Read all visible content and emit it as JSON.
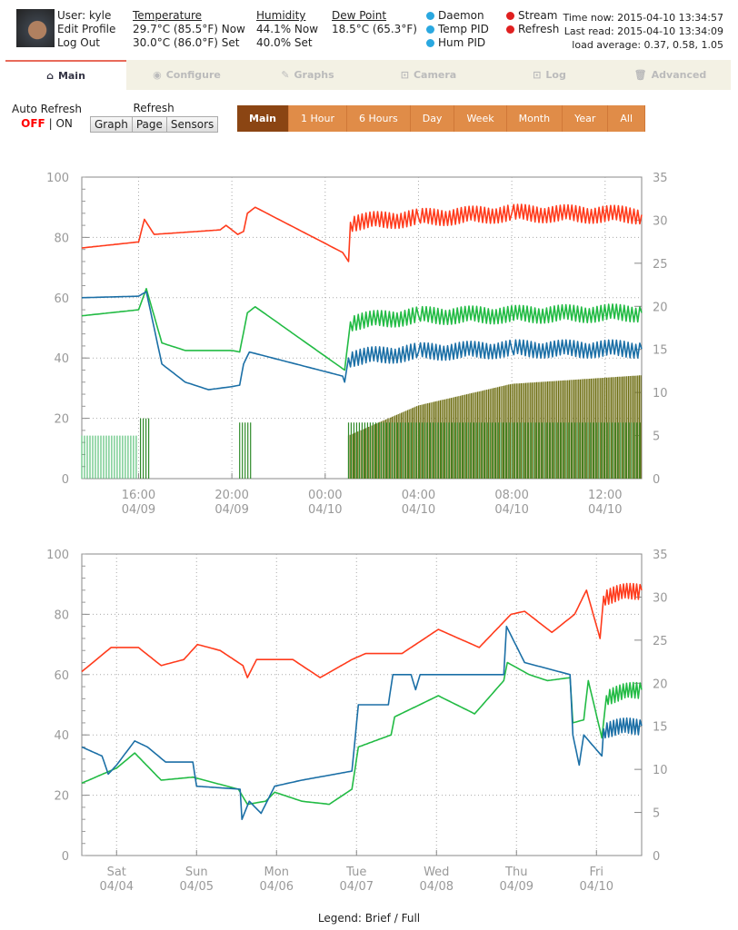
{
  "user": {
    "label": "User: kyle",
    "edit_profile": "Edit Profile",
    "log_out": "Log Out"
  },
  "temperature": {
    "title": "Temperature",
    "now": "29.7°C (85.5°F) Now",
    "set": "30.0°C (86.0°F) Set"
  },
  "humidity": {
    "title": "Humidity",
    "now": "44.1% Now",
    "set": "40.0% Set"
  },
  "dew_point": {
    "title": "Dew Point",
    "value": "18.5°C (65.3°F)"
  },
  "status": [
    {
      "label": "Daemon",
      "color": "#2aa8e0"
    },
    {
      "label": "Temp PID",
      "color": "#2aa8e0"
    },
    {
      "label": "Hum PID",
      "color": "#2aa8e0"
    },
    {
      "label": "Stream",
      "color": "#e02020"
    },
    {
      "label": "Refresh",
      "color": "#e02020"
    }
  ],
  "times": {
    "now": "Time now: 2015-04-10 13:34:57",
    "last_read": "Last read: 2015-04-10 13:34:09",
    "load": "load average: 0.37, 0.58, 1.05"
  },
  "tabs": [
    {
      "label": "Main",
      "icon": "home-icon"
    },
    {
      "label": "Configure",
      "icon": "toggle-icon"
    },
    {
      "label": "Graphs",
      "icon": "edit-icon"
    },
    {
      "label": "Camera",
      "icon": "inbox-icon"
    },
    {
      "label": "Log",
      "icon": "inbox-icon"
    },
    {
      "label": "Advanced",
      "icon": "trash-icon"
    }
  ],
  "auto_refresh": {
    "label": "Auto Refresh",
    "off": "OFF",
    "sep": "|",
    "on": "ON"
  },
  "refresh": {
    "label": "Refresh",
    "buttons": [
      "Graph",
      "Page",
      "Sensors"
    ]
  },
  "ranges": [
    "Main",
    "1 Hour",
    "6 Hours",
    "Day",
    "Week",
    "Month",
    "Year",
    "All"
  ],
  "legend": {
    "prefix": "Legend:",
    "brief": "Brief",
    "sep": "/",
    "full": "Full"
  },
  "colors": {
    "temperature": "#ff3b1c",
    "humidity": "#1b6fa6",
    "dew_point": "#22bb44",
    "olive_bars": "#6e6e12",
    "green_bars": "#2f8a2a",
    "accent": "#e08c48"
  },
  "chart_data": [
    {
      "type": "line",
      "xlim": [
        "2015-04-09 13:34",
        "2015-04-10 13:34"
      ],
      "ylim_left": [
        0,
        100
      ],
      "ylim_right": [
        0,
        35
      ],
      "yticks_left": [
        "0",
        "20",
        "40",
        "60",
        "80",
        "100"
      ],
      "yticks_right": [
        "0",
        "5",
        "10",
        "15",
        "20",
        "25",
        "30",
        "35"
      ],
      "xticks": [
        {
          "t": "04-09 16:00",
          "l1": "16:00",
          "l2": "04/09"
        },
        {
          "t": "04-09 20:00",
          "l1": "20:00",
          "l2": "04/09"
        },
        {
          "t": "04-10 00:00",
          "l1": "00:00",
          "l2": "04/10"
        },
        {
          "t": "04-10 04:00",
          "l1": "04:00",
          "l2": "04/10"
        },
        {
          "t": "04-10 08:00",
          "l1": "08:00",
          "l2": "04/10"
        },
        {
          "t": "04-10 12:00",
          "l1": "12:00",
          "l2": "04/10"
        }
      ],
      "grid": true,
      "series": [
        {
          "color": "#ff3b1c",
          "axis": "left",
          "points": [
            [
              "04-09 13:34",
              76.5
            ],
            [
              "04-09 16:00",
              78.5
            ],
            [
              "04-09 16:15",
              86
            ],
            [
              "04-09 16:40",
              81
            ],
            [
              "04-09 19:30",
              82.5
            ],
            [
              "04-09 19:45",
              84
            ],
            [
              "04-09 20:15",
              81
            ],
            [
              "04-09 20:30",
              82
            ],
            [
              "04-09 20:40",
              88
            ],
            [
              "04-09 21:00",
              90
            ],
            [
              "04-10 00:45",
              75
            ],
            [
              "04-10 01:00",
              72
            ],
            [
              "04-10 01:05",
              85
            ],
            [
              "04-10 04:00",
              86.5
            ],
            [
              "04-10 08:00",
              88
            ],
            [
              "04-10 13:34",
              87.5
            ]
          ]
        },
        {
          "color": "#22bb44",
          "axis": "left",
          "points": [
            [
              "04-09 13:34",
              54
            ],
            [
              "04-09 16:00",
              56
            ],
            [
              "04-09 16:20",
              63
            ],
            [
              "04-09 17:00",
              45
            ],
            [
              "04-09 18:00",
              42.5
            ],
            [
              "04-09 20:00",
              42.5
            ],
            [
              "04-09 20:20",
              42
            ],
            [
              "04-09 20:40",
              55
            ],
            [
              "04-09 21:00",
              57
            ],
            [
              "04-10 00:50",
              36
            ],
            [
              "04-10 01:05",
              52
            ],
            [
              "04-10 04:00",
              54
            ],
            [
              "04-10 13:34",
              55
            ]
          ]
        },
        {
          "color": "#1b6fa6",
          "axis": "left",
          "points": [
            [
              "04-09 13:34",
              60
            ],
            [
              "04-09 16:00",
              60.5
            ],
            [
              "04-09 16:20",
              62
            ],
            [
              "04-09 17:00",
              38
            ],
            [
              "04-09 18:00",
              32
            ],
            [
              "04-09 19:00",
              29.5
            ],
            [
              "04-09 20:00",
              30.5
            ],
            [
              "04-09 20:20",
              31
            ],
            [
              "04-09 20:30",
              38
            ],
            [
              "04-09 20:45",
              42
            ],
            [
              "04-10 00:45",
              34
            ],
            [
              "04-10 00:50",
              32
            ],
            [
              "04-10 01:00",
              40
            ],
            [
              "04-10 04:00",
              42
            ],
            [
              "04-10 08:00",
              43
            ],
            [
              "04-10 13:34",
              43
            ]
          ]
        }
      ],
      "bars": [
        {
          "color": "#6e6e12",
          "axis": "right",
          "envelope": [
            [
              "04-10 01:00",
              5
            ],
            [
              "04-10 04:00",
              8.5
            ],
            [
              "04-10 08:00",
              11
            ],
            [
              "04-10 13:34",
              12
            ]
          ]
        },
        {
          "color": "#5cc27a",
          "axis": "right",
          "envelope": [
            [
              "04-09 13:34",
              5
            ],
            [
              "04-09 16:00",
              5
            ]
          ]
        },
        {
          "color": "#2f8a2a",
          "axis": "right",
          "envelope": [
            [
              "04-09 16:05",
              7
            ],
            [
              "04-09 16:30",
              7
            ]
          ]
        },
        {
          "color": "#2f8a2a",
          "axis": "right",
          "envelope": [
            [
              "04-09 20:20",
              6.5
            ],
            [
              "04-09 20:50",
              6.5
            ]
          ]
        },
        {
          "color": "#2f8a2a",
          "axis": "right",
          "envelope": [
            [
              "04-10 01:00",
              6.5
            ],
            [
              "04-10 13:34",
              6.5
            ]
          ]
        }
      ]
    },
    {
      "type": "line",
      "xlim": [
        "2015-04-03 13:34",
        "2015-04-10 13:34"
      ],
      "ylim_left": [
        0,
        100
      ],
      "ylim_right": [
        0,
        35
      ],
      "yticks_left": [
        "0",
        "20",
        "40",
        "60",
        "80",
        "100"
      ],
      "yticks_right": [
        "0",
        "5",
        "10",
        "15",
        "20",
        "25",
        "30",
        "35"
      ],
      "xticks": [
        {
          "t": "04-04 00:00",
          "l1": "Sat",
          "l2": "04/04"
        },
        {
          "t": "04-05 00:00",
          "l1": "Sun",
          "l2": "04/05"
        },
        {
          "t": "04-06 00:00",
          "l1": "Mon",
          "l2": "04/06"
        },
        {
          "t": "04-07 00:00",
          "l1": "Tue",
          "l2": "04/07"
        },
        {
          "t": "04-08 00:00",
          "l1": "Wed",
          "l2": "04/08"
        },
        {
          "t": "04-09 00:00",
          "l1": "Thu",
          "l2": "04/09"
        },
        {
          "t": "04-10 00:00",
          "l1": "Fri",
          "l2": "04/10"
        }
      ],
      "grid": true,
      "series": [
        {
          "color": "#ff3b1c",
          "axis": "left",
          "points": [
            [
              "04-03 13:34",
              61
            ],
            [
              "04-03 22:22",
              69
            ],
            [
              "04-04 06:33",
              69
            ],
            [
              "04-04 13:22",
              63
            ],
            [
              "04-04 20:11",
              65
            ],
            [
              "04-05 00:16",
              70
            ],
            [
              "04-05 07:05",
              68
            ],
            [
              "04-05 13:55",
              63
            ],
            [
              "04-05 15:16",
              59
            ],
            [
              "04-05 18:00",
              65
            ],
            [
              "04-06 04:54",
              65
            ],
            [
              "04-06 13:05",
              59
            ],
            [
              "04-06 22:38",
              65
            ],
            [
              "04-07 02:44",
              67
            ],
            [
              "04-07 13:38",
              67
            ],
            [
              "04-08 00:33",
              75
            ],
            [
              "04-08 12:49",
              69
            ],
            [
              "04-08 22:22",
              80
            ],
            [
              "04-09 02:27",
              81
            ],
            [
              "04-09 10:38",
              74
            ],
            [
              "04-09 17:27",
              80
            ],
            [
              "04-09 21:00",
              88
            ],
            [
              "04-10 01:05",
              72
            ],
            [
              "04-10 02:10",
              86
            ],
            [
              "04-10 13:34",
              88
            ]
          ]
        },
        {
          "color": "#22bb44",
          "axis": "left",
          "points": [
            [
              "04-03 13:34",
              24
            ],
            [
              "04-04 00:00",
              29
            ],
            [
              "04-04 05:27",
              34
            ],
            [
              "04-04 13:22",
              25
            ],
            [
              "04-04 22:54",
              26
            ],
            [
              "04-05 12:33",
              22
            ],
            [
              "04-05 15:16",
              17
            ],
            [
              "04-05 20:44",
              18
            ],
            [
              "04-05 23:27",
              21
            ],
            [
              "04-06 07:38",
              18
            ],
            [
              "04-06 15:49",
              17
            ],
            [
              "04-06 22:38",
              22
            ],
            [
              "04-07 00:33",
              36
            ],
            [
              "04-07 10:22",
              40
            ],
            [
              "04-07 11:27",
              46
            ],
            [
              "04-08 00:33",
              53
            ],
            [
              "04-08 11:27",
              47
            ],
            [
              "04-08 20:11",
              58
            ],
            [
              "04-08 21:16",
              64
            ],
            [
              "04-09 03:49",
              60
            ],
            [
              "04-09 09:16",
              58
            ],
            [
              "04-09 16:05",
              59
            ],
            [
              "04-09 16:55",
              44
            ],
            [
              "04-09 20:11",
              45
            ],
            [
              "04-09 21:33",
              58
            ],
            [
              "04-10 01:38",
              39
            ],
            [
              "04-10 03:00",
              53
            ],
            [
              "04-10 13:34",
              55
            ]
          ]
        },
        {
          "color": "#1b6fa6",
          "axis": "left",
          "points": [
            [
              "04-03 13:34",
              36
            ],
            [
              "04-03 19:38",
              33
            ],
            [
              "04-03 21:30",
              27
            ],
            [
              "04-04 00:00",
              30
            ],
            [
              "04-04 05:27",
              38
            ],
            [
              "04-04 09:16",
              36
            ],
            [
              "04-04 14:44",
              31
            ],
            [
              "04-04 22:54",
              31
            ],
            [
              "04-05 00:00",
              23
            ],
            [
              "04-05 13:05",
              22
            ],
            [
              "04-05 13:38",
              12
            ],
            [
              "04-05 15:49",
              18
            ],
            [
              "04-05 19:22",
              14
            ],
            [
              "04-05 23:27",
              23
            ],
            [
              "04-06 07:38",
              25
            ],
            [
              "04-06 22:38",
              28
            ],
            [
              "04-07 00:33",
              50
            ],
            [
              "04-07 09:33",
              50
            ],
            [
              "04-07 10:55",
              60
            ],
            [
              "04-07 16:22",
              60
            ],
            [
              "04-07 17:44",
              55
            ],
            [
              "04-07 19:05",
              60
            ],
            [
              "04-08 20:11",
              60
            ],
            [
              "04-08 21:00",
              76
            ],
            [
              "04-09 02:27",
              64
            ],
            [
              "04-09 16:05",
              60
            ],
            [
              "04-09 16:55",
              40
            ],
            [
              "04-09 18:49",
              30
            ],
            [
              "04-09 20:11",
              40
            ],
            [
              "04-10 01:38",
              33
            ],
            [
              "04-10 02:10",
              42
            ],
            [
              "04-10 13:34",
              43
            ]
          ]
        }
      ],
      "bars": []
    }
  ]
}
